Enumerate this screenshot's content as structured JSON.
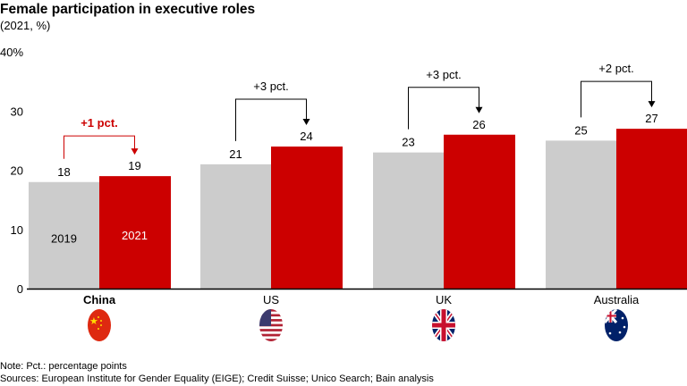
{
  "chart_data": {
    "type": "bar",
    "title": "Female participation in executive roles",
    "subtitle": "(2021, %)",
    "categories": [
      "China",
      "US",
      "UK",
      "Australia"
    ],
    "highlight_category": "China",
    "series": [
      {
        "name": "2019",
        "values": [
          18,
          21,
          23,
          25
        ],
        "color": "#cccccc"
      },
      {
        "name": "2021",
        "values": [
          19,
          24,
          26,
          27
        ],
        "color": "#cc0000"
      }
    ],
    "annotations": [
      "+1 pct.",
      "+3 pct.",
      "+3 pct.",
      "+2 pct."
    ],
    "annotation_colors": [
      "#cc0000",
      "#000000",
      "#000000",
      "#000000"
    ],
    "ylim": [
      0,
      40
    ],
    "yticks": [
      "0",
      "10",
      "20",
      "30",
      "40%"
    ],
    "grid": false,
    "legend": "inside first bars",
    "flags": [
      "china-flag-icon",
      "us-flag-icon",
      "uk-flag-icon",
      "australia-flag-icon"
    ]
  },
  "notes": {
    "note": "Note: Pct.: percentage points",
    "sources": "Sources: European Institute for Gender Equality (EIGE); Credit Suisse; Unico Search; Bain analysis"
  }
}
